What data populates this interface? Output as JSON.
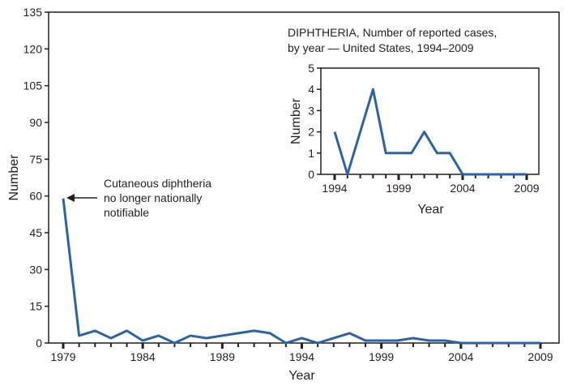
{
  "chart_data": [
    {
      "type": "line",
      "xlabel": "Year",
      "ylabel": "Number",
      "xlim": [
        1979,
        2009
      ],
      "ylim": [
        0,
        135
      ],
      "yticks": [
        0,
        15,
        30,
        45,
        60,
        75,
        90,
        105,
        120,
        135
      ],
      "xticklabels": [
        1979,
        1984,
        1989,
        1994,
        1999,
        2004,
        2009
      ],
      "x": [
        1979,
        1980,
        1981,
        1982,
        1983,
        1984,
        1985,
        1986,
        1987,
        1988,
        1989,
        1990,
        1991,
        1992,
        1993,
        1994,
        1995,
        1996,
        1997,
        1998,
        1999,
        2000,
        2001,
        2002,
        2003,
        2004,
        2005,
        2006,
        2007,
        2008,
        2009
      ],
      "values": [
        59,
        3,
        5,
        2,
        5,
        1,
        3,
        0,
        3,
        2,
        3,
        4,
        5,
        4,
        0,
        2,
        0,
        2,
        4,
        1,
        1,
        1,
        2,
        1,
        1,
        0,
        0,
        0,
        0,
        0,
        0
      ],
      "annotation": "Cutaneous diphtheria\nno longer nationally\nnotifiable",
      "color": "#2b64a6",
      "grid": false
    },
    {
      "type": "line",
      "title": "DIPHTHERIA, Number of reported cases,\nby year — United States, 1994–2009",
      "xlabel": "Year",
      "ylabel": "Number",
      "xlim": [
        1994,
        2009
      ],
      "ylim": [
        0,
        5
      ],
      "yticks": [
        0,
        1,
        2,
        3,
        4,
        5
      ],
      "xticklabels": [
        1994,
        1999,
        2004,
        2009
      ],
      "x": [
        1994,
        1995,
        1996,
        1997,
        1998,
        1999,
        2000,
        2001,
        2002,
        2003,
        2004,
        2005,
        2006,
        2007,
        2008,
        2009
      ],
      "values": [
        2,
        0,
        2,
        4,
        1,
        1,
        1,
        2,
        1,
        1,
        0,
        0,
        0,
        0,
        0,
        0
      ],
      "color": "#2b64a6",
      "grid": false
    }
  ]
}
